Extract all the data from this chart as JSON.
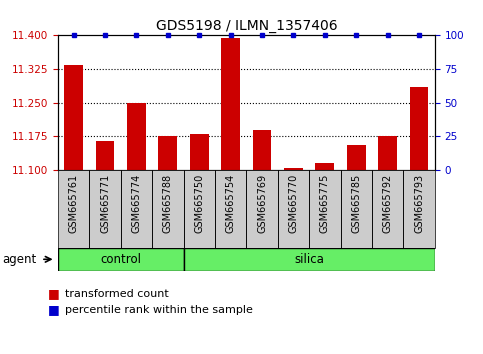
{
  "title": "GDS5198 / ILMN_1357406",
  "categories": [
    "GSM665761",
    "GSM665771",
    "GSM665774",
    "GSM665788",
    "GSM665750",
    "GSM665754",
    "GSM665769",
    "GSM665770",
    "GSM665775",
    "GSM665785",
    "GSM665792",
    "GSM665793"
  ],
  "red_values": [
    11.335,
    11.165,
    11.25,
    11.175,
    11.18,
    11.395,
    11.19,
    11.105,
    11.115,
    11.155,
    11.175,
    11.285
  ],
  "ymin": 11.1,
  "ymax": 11.4,
  "yticks": [
    11.1,
    11.175,
    11.25,
    11.325,
    11.4
  ],
  "right_yticks": [
    0,
    25,
    50,
    75,
    100
  ],
  "control_count": 4,
  "silica_count": 8,
  "agent_label": "agent",
  "control_label": "control",
  "silica_label": "silica",
  "legend_red": "transformed count",
  "legend_blue": "percentile rank within the sample",
  "bar_color": "#cc0000",
  "blue_color": "#0000cc",
  "green_bg": "#66ee66",
  "tick_bg": "#cccccc",
  "title_fontsize": 10,
  "tick_fontsize": 7,
  "label_fontsize": 8.5,
  "legend_fontsize": 8
}
